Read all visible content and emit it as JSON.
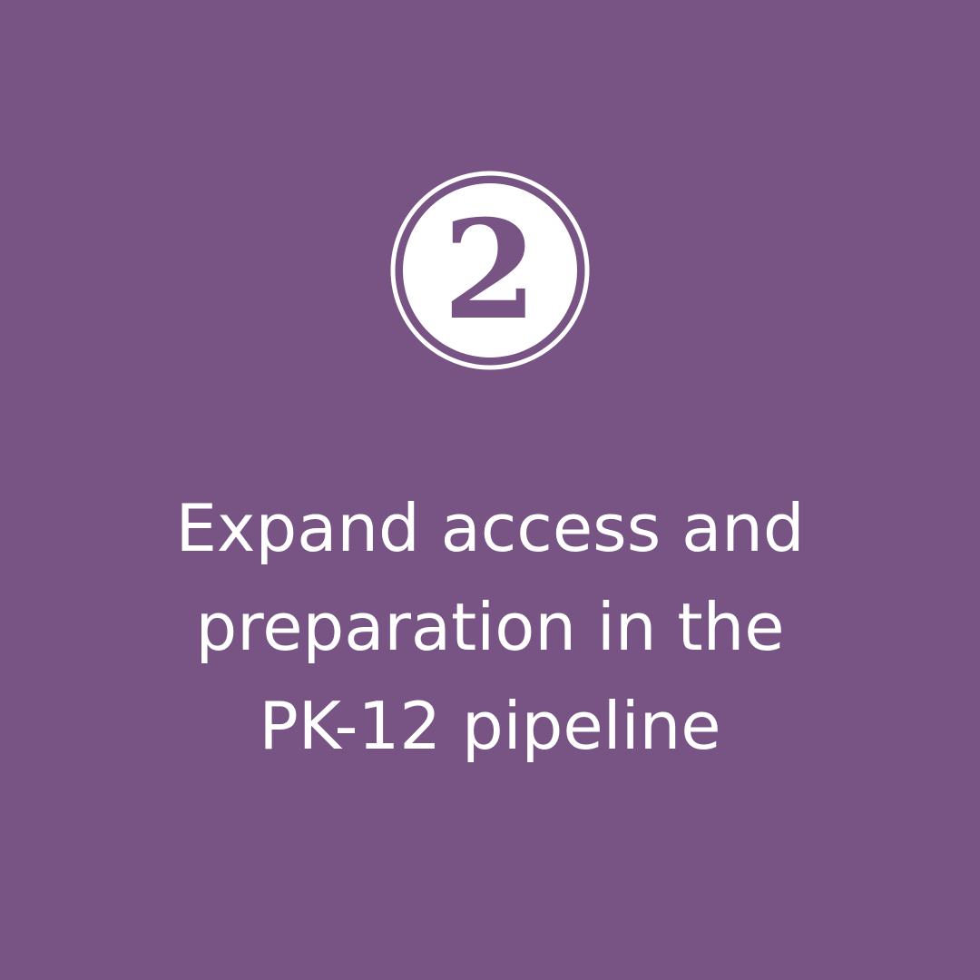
{
  "badge": {
    "numeral": "2",
    "icon": "number-two-badge-icon"
  },
  "headline": {
    "lines": [
      "Expand access and",
      "preparation in the",
      "PK-12 pipeline"
    ]
  },
  "colors": {
    "background": "#785485",
    "foreground": "#ffffff"
  }
}
